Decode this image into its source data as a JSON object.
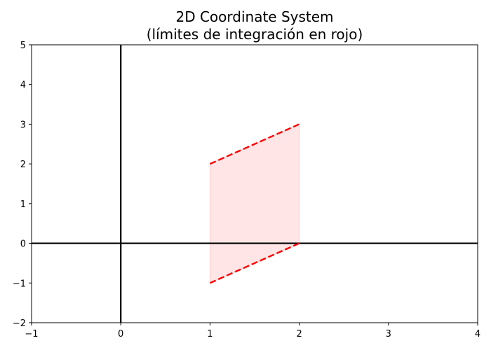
{
  "chart_data": {
    "type": "line",
    "title": "2D Coordinate System",
    "subtitle": "(límites de integración en rojo)",
    "xlabel": "",
    "ylabel": "",
    "xlim": [
      -1,
      4
    ],
    "ylim": [
      -2,
      5
    ],
    "xticks": [
      -1,
      0,
      1,
      2,
      3,
      4
    ],
    "yticks": [
      -2,
      -1,
      0,
      1,
      2,
      3,
      4,
      5
    ],
    "xtick_labels": [
      "−1",
      "0",
      "1",
      "2",
      "3",
      "4"
    ],
    "ytick_labels": [
      "−2",
      "−1",
      "0",
      "1",
      "2",
      "3",
      "4",
      "5"
    ],
    "grid": false,
    "axes_lines": {
      "x": 0,
      "y": 0,
      "color": "#000000"
    },
    "series": [
      {
        "x": [
          1,
          2
        ],
        "y": [
          2,
          3
        ],
        "style": "dashed",
        "color": "#ff0000"
      },
      {
        "x": [
          1,
          2
        ],
        "y": [
          -1,
          0
        ],
        "style": "dashed",
        "color": "#ff0000"
      }
    ],
    "fill_between": {
      "x": [
        1,
        2
      ],
      "upper": [
        2,
        3
      ],
      "lower": [
        -1,
        0
      ],
      "color": "#ffe5e5",
      "edge_color": "#ffcccc"
    }
  }
}
